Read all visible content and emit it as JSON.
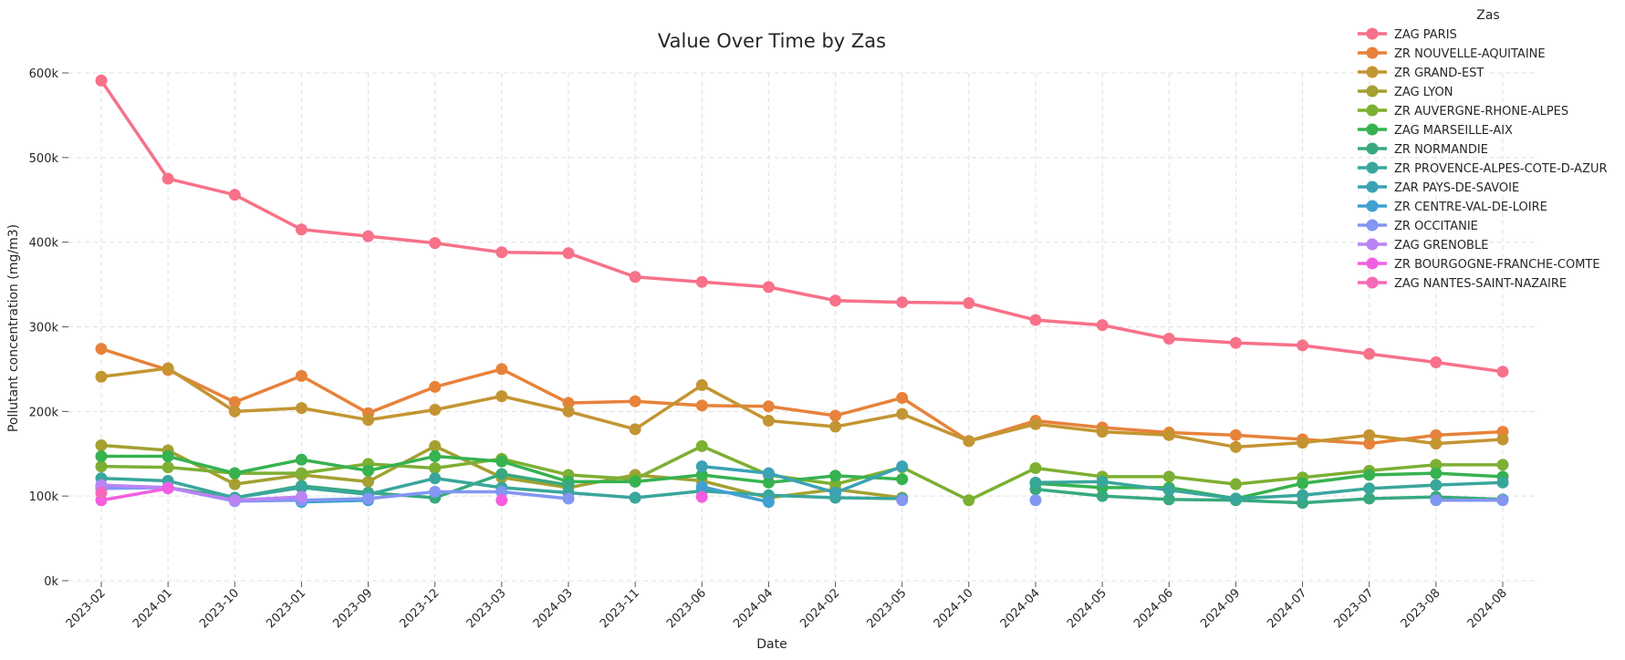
{
  "chart_data": {
    "type": "line",
    "title": "Value Over Time by Zas",
    "xlabel": "Date",
    "ylabel": "Pollutant concentration (mg/m3)",
    "ylim": [
      0,
      600000
    ],
    "yticks": [
      0,
      100000,
      200000,
      300000,
      400000,
      500000,
      600000
    ],
    "ytick_labels": [
      "0k",
      "100k",
      "200k",
      "300k",
      "400k",
      "500k",
      "600k"
    ],
    "grid": true,
    "legend_title": "Zas",
    "legend_position": "top-right",
    "categories": [
      "2023-02",
      "2024-01",
      "2023-10",
      "2023-01",
      "2023-09",
      "2023-12",
      "2023-03",
      "2024-03",
      "2023-11",
      "2023-06",
      "2024-04",
      "2024-02",
      "2023-05",
      "2024-10",
      "2024-04",
      "2024-05",
      "2024-06",
      "2024-09",
      "2024-07",
      "2023-07",
      "2023-08",
      "2024-08"
    ],
    "series": [
      {
        "name": "ZAG PARIS",
        "color": "#f77189",
        "values": [
          591000,
          475000,
          456000,
          415000,
          407000,
          399000,
          388000,
          387000,
          359000,
          353000,
          347000,
          331000,
          329000,
          328000,
          308000,
          302000,
          286000,
          281000,
          278000,
          268000,
          258000,
          247000
        ]
      },
      {
        "name": "ZR NOUVELLE-AQUITAINE",
        "color": "#e7823a",
        "values": [
          274000,
          249000,
          211000,
          242000,
          198000,
          229000,
          250000,
          210000,
          212000,
          207000,
          206000,
          195000,
          216000,
          165000,
          189000,
          181000,
          175000,
          172000,
          167000,
          162000,
          172000,
          176000
        ]
      },
      {
        "name": "ZR GRAND-EST",
        "color": "#c39532",
        "values": [
          241000,
          251000,
          200000,
          204000,
          190000,
          202000,
          218000,
          200000,
          179000,
          231000,
          189000,
          182000,
          197000,
          165000,
          185000,
          176000,
          172000,
          158000,
          163000,
          172000,
          162000,
          167000
        ]
      },
      {
        "name": "ZAG LYON",
        "color": "#a4a031",
        "values": [
          160000,
          154000,
          114000,
          125000,
          117000,
          159000,
          122000,
          110000,
          125000,
          118000,
          98000,
          108000,
          98000,
          null,
          null,
          null,
          null,
          null,
          null,
          null,
          null,
          null
        ]
      },
      {
        "name": "ZR AUVERGNE-RHONE-ALPES",
        "color": "#7daf32",
        "values": [
          135000,
          134000,
          127000,
          127000,
          138000,
          133000,
          144000,
          125000,
          120000,
          159000,
          125000,
          114000,
          134000,
          95000,
          133000,
          123000,
          123000,
          114000,
          122000,
          130000,
          137000,
          137000
        ]
      },
      {
        "name": "ZAG MARSEILLE-AIX",
        "color": "#36b24f",
        "values": [
          147000,
          147000,
          127000,
          143000,
          130000,
          147000,
          141000,
          117000,
          117000,
          125000,
          116000,
          124000,
          120000,
          null,
          115000,
          110000,
          110000,
          97000,
          115000,
          125000,
          127000,
          123000
        ]
      },
      {
        "name": "ZR NORMANDIE",
        "color": "#38a97e",
        "values": [
          112000,
          110000,
          98000,
          112000,
          104000,
          98000,
          126000,
          113000,
          null,
          null,
          null,
          null,
          null,
          null,
          108000,
          100000,
          96000,
          95000,
          92000,
          97000,
          99000,
          96000
        ]
      },
      {
        "name": "ZR PROVENCE-ALPES-COTE-D-AZUR",
        "color": "#39a69c",
        "values": [
          121000,
          118000,
          98000,
          110000,
          102000,
          121000,
          110000,
          104000,
          98000,
          106000,
          101000,
          98000,
          97000,
          null,
          116000,
          117000,
          107000,
          97000,
          101000,
          109000,
          113000,
          116000
        ]
      },
      {
        "name": "ZAR PAYS-DE-SAVOIE",
        "color": "#3ba2b4",
        "values": [
          null,
          null,
          null,
          null,
          null,
          null,
          null,
          null,
          null,
          135000,
          127000,
          104000,
          135000,
          null,
          null,
          null,
          null,
          null,
          null,
          null,
          null,
          null
        ]
      },
      {
        "name": "ZR CENTRE-VAL-DE-LOIRE",
        "color": "#40a0d0",
        "values": [
          null,
          null,
          null,
          93000,
          95000,
          null,
          null,
          null,
          null,
          111000,
          93000,
          null,
          null,
          null,
          null,
          null,
          null,
          null,
          null,
          null,
          null,
          null
        ]
      },
      {
        "name": "ZR OCCITANIE",
        "color": "#8296f2",
        "values": [
          109000,
          110000,
          94000,
          95000,
          97000,
          105000,
          105000,
          97000,
          null,
          null,
          null,
          null,
          95000,
          null,
          95000,
          null,
          null,
          null,
          null,
          null,
          95000,
          95000
        ]
      },
      {
        "name": "ZAG GRENOBLE",
        "color": "#bb83f4",
        "values": [
          113000,
          110000,
          95000,
          99000,
          null,
          null,
          null,
          null,
          null,
          null,
          null,
          null,
          null,
          null,
          null,
          null,
          null,
          null,
          null,
          null,
          null,
          null
        ]
      },
      {
        "name": "ZR BOURGOGNE-FRANCHE-COMTE",
        "color": "#f35ee0",
        "values": [
          95000,
          109000,
          null,
          null,
          null,
          null,
          95000,
          null,
          null,
          99000,
          null,
          null,
          null,
          null,
          null,
          null,
          null,
          null,
          null,
          null,
          null,
          null
        ]
      },
      {
        "name": "ZAG NANTES-SAINT-NAZAIRE",
        "color": "#f569b8",
        "values": [
          104000,
          null,
          null,
          null,
          null,
          null,
          null,
          null,
          null,
          null,
          null,
          null,
          null,
          null,
          null,
          null,
          null,
          null,
          null,
          null,
          null,
          null
        ]
      }
    ]
  }
}
